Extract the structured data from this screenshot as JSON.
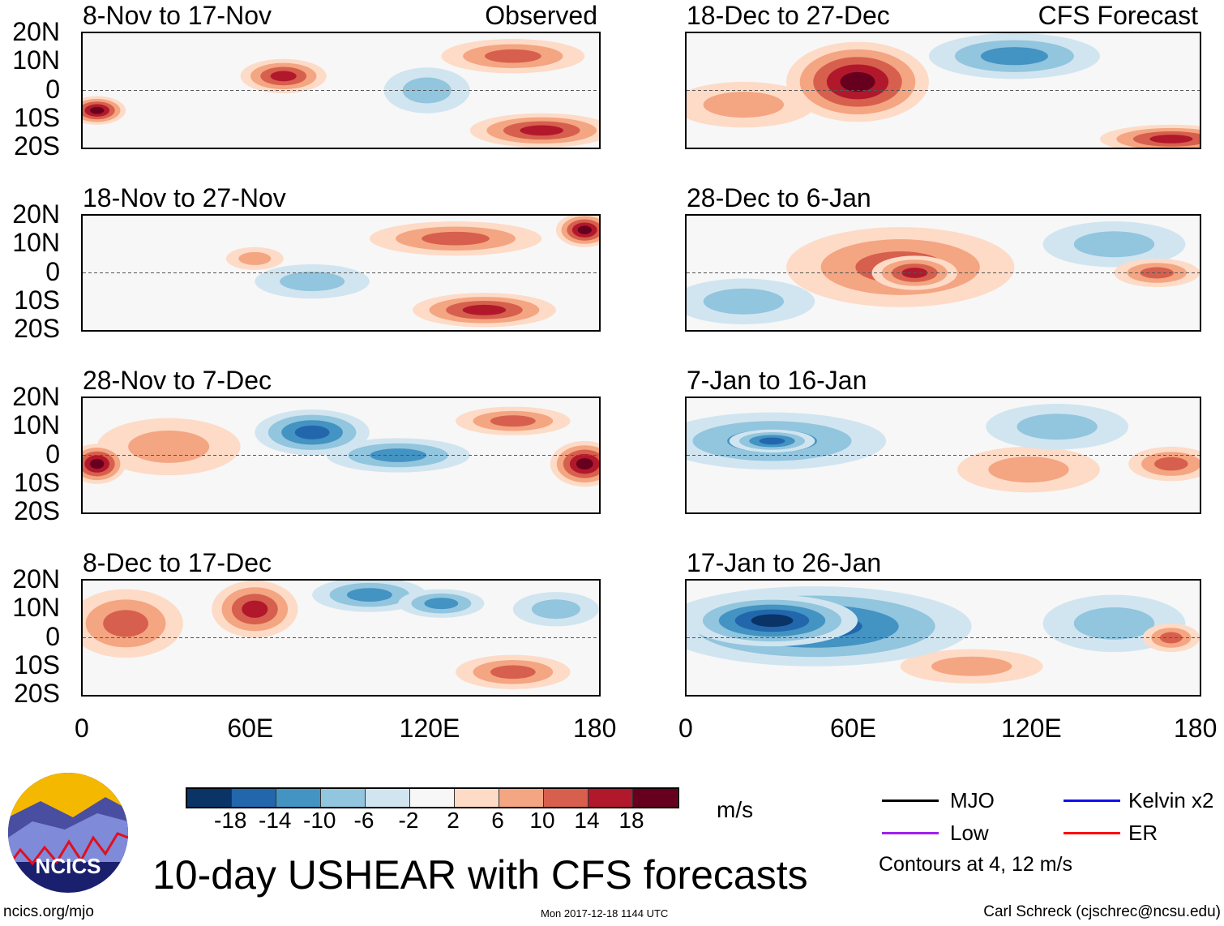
{
  "figure_title": "10-day USHEAR with CFS forecasts",
  "labels": {
    "observed": "Observed",
    "forecast": "CFS Forecast"
  },
  "lat_ticks": [
    "20N",
    "10N",
    "0",
    "10S",
    "20S"
  ],
  "lon_ticks": [
    "0",
    "60E",
    "120E",
    "180"
  ],
  "panels": [
    {
      "title": "8-Nov to 17-Nov",
      "column": "observed",
      "blobs": [
        [
          70,
          5,
          15,
          6,
          12
        ],
        [
          5,
          -7,
          10,
          5,
          16
        ],
        [
          160,
          -14,
          25,
          6,
          12
        ],
        [
          150,
          12,
          25,
          6,
          8
        ],
        [
          120,
          0,
          15,
          8,
          -6
        ]
      ]
    },
    {
      "title": "18-Nov to 27-Nov",
      "column": "observed",
      "blobs": [
        [
          140,
          -13,
          25,
          6,
          14
        ],
        [
          130,
          12,
          30,
          6,
          8
        ],
        [
          175,
          15,
          10,
          6,
          16
        ],
        [
          80,
          -3,
          20,
          6,
          -6
        ],
        [
          60,
          5,
          10,
          4,
          6
        ]
      ]
    },
    {
      "title": "28-Nov to 7-Dec",
      "column": "observed",
      "blobs": [
        [
          80,
          8,
          20,
          8,
          -14
        ],
        [
          110,
          0,
          25,
          6,
          -8
        ],
        [
          5,
          -3,
          10,
          7,
          18
        ],
        [
          175,
          -3,
          12,
          8,
          16
        ],
        [
          150,
          12,
          20,
          5,
          10
        ],
        [
          30,
          3,
          25,
          10,
          4
        ]
      ]
    },
    {
      "title": "8-Dec to 17-Dec",
      "column": "observed",
      "blobs": [
        [
          60,
          10,
          15,
          10,
          14
        ],
        [
          15,
          5,
          20,
          12,
          10
        ],
        [
          100,
          15,
          20,
          6,
          -10
        ],
        [
          125,
          12,
          15,
          5,
          -10
        ],
        [
          150,
          -12,
          20,
          6,
          10
        ],
        [
          165,
          10,
          15,
          6,
          -4
        ]
      ]
    },
    {
      "title": "18-Dec to 27-Dec",
      "column": "forecast",
      "blobs": [
        [
          60,
          3,
          25,
          14,
          18
        ],
        [
          115,
          12,
          30,
          8,
          -8
        ],
        [
          20,
          -5,
          25,
          8,
          4
        ],
        [
          170,
          -17,
          25,
          5,
          12
        ]
      ]
    },
    {
      "title": "28-Dec to 6-Jan",
      "column": "forecast",
      "blobs": [
        [
          75,
          2,
          40,
          14,
          8
        ],
        [
          80,
          0,
          15,
          6,
          12
        ],
        [
          165,
          0,
          15,
          5,
          10
        ],
        [
          150,
          10,
          25,
          8,
          -6
        ],
        [
          20,
          -10,
          25,
          8,
          -4
        ]
      ]
    },
    {
      "title": "7-Jan to 16-Jan",
      "column": "forecast",
      "blobs": [
        [
          30,
          5,
          40,
          10,
          -10
        ],
        [
          30,
          5,
          15,
          4,
          -14
        ],
        [
          120,
          -5,
          25,
          8,
          4
        ],
        [
          170,
          -3,
          15,
          6,
          8
        ],
        [
          130,
          10,
          25,
          8,
          -4
        ]
      ]
    },
    {
      "title": "17-Jan to 26-Jan",
      "column": "forecast",
      "blobs": [
        [
          45,
          4,
          55,
          14,
          -14
        ],
        [
          30,
          6,
          30,
          9,
          -18
        ],
        [
          150,
          5,
          25,
          10,
          -4
        ],
        [
          100,
          -10,
          25,
          6,
          4
        ],
        [
          170,
          0,
          10,
          5,
          10
        ]
      ]
    }
  ],
  "colorbar": {
    "unit": "m/s",
    "labels": [
      "-18",
      "-14",
      "-10",
      "-6",
      "-2",
      "2",
      "6",
      "10",
      "14",
      "18"
    ],
    "colors": [
      "#0a3366",
      "#2266ac",
      "#4393c3",
      "#92c5de",
      "#d1e5f0",
      "#f7f7f7",
      "#fddbc7",
      "#f4a582",
      "#d6604d",
      "#b2182b",
      "#67001f"
    ]
  },
  "legend": {
    "items": [
      {
        "label": "MJO",
        "color": "#000000"
      },
      {
        "label": "Kelvin x2",
        "color": "#1010ee"
      },
      {
        "label": "Low",
        "color": "#a020f0"
      },
      {
        "label": "ER",
        "color": "#ff0000"
      }
    ],
    "note": "Contours at 4, 12 m/s"
  },
  "logo": {
    "text": "NCICS"
  },
  "footer": {
    "url": "ncics.org/mjo",
    "timestamp": "Mon 2017-12-18 1144 UTC",
    "credit": "Carl Schreck (cjschrec@ncsu.edu)"
  }
}
